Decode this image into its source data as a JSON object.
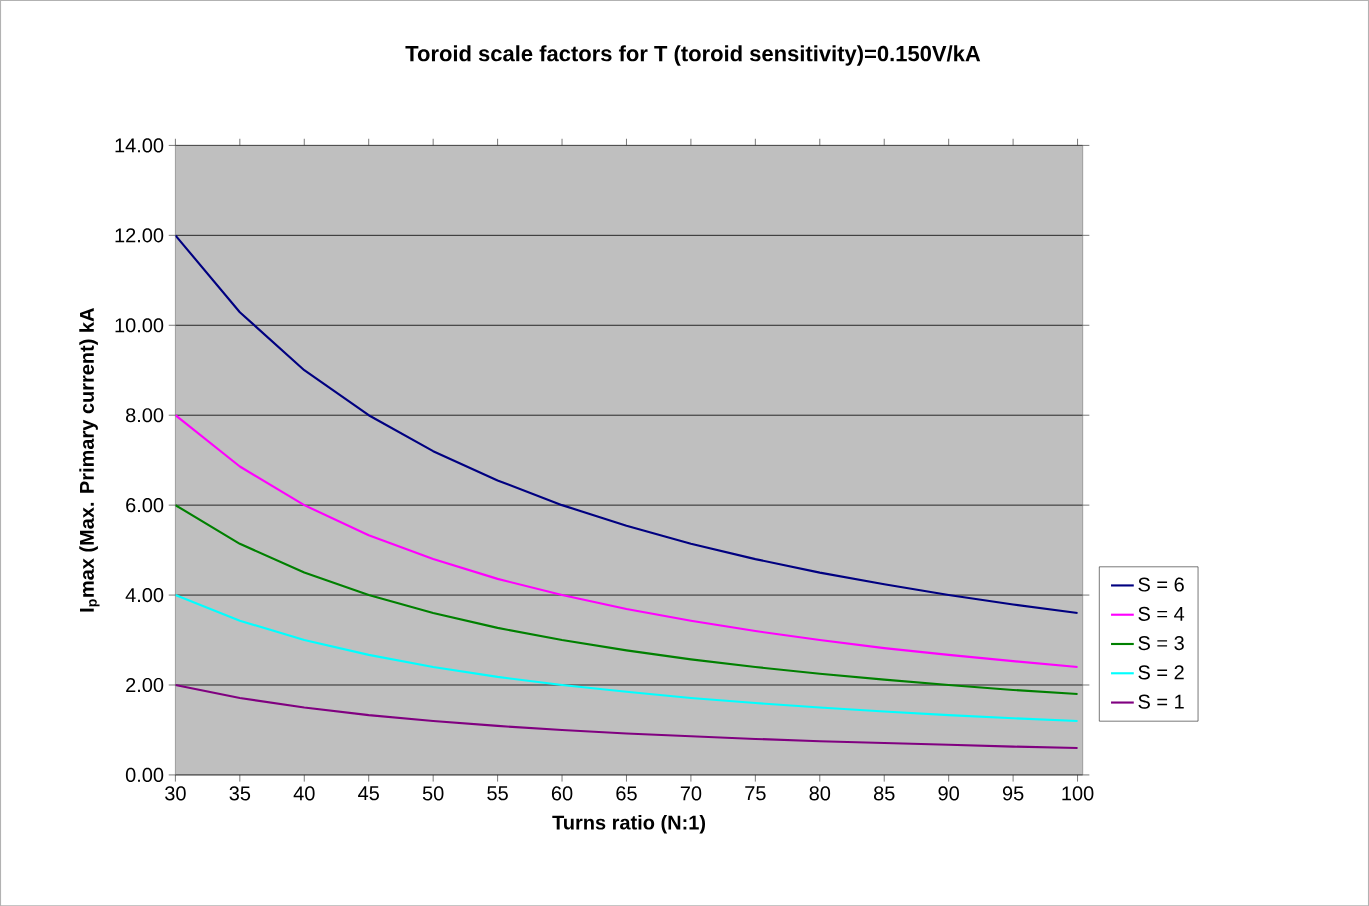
{
  "chart_data": {
    "type": "line",
    "title": "Toroid scale factors for T (toroid sensitivity)=0.150V/kA",
    "xlabel": "Turns ratio (N:1)",
    "ylabel": "I$_{p}$max (Max. Primary current) kA",
    "x": [
      30,
      35,
      40,
      45,
      50,
      55,
      60,
      65,
      70,
      75,
      80,
      85,
      90,
      95,
      100
    ],
    "series": [
      {
        "name": "S = 6",
        "color": "#000080",
        "values": [
          12.0,
          10.29,
          9.0,
          8.0,
          7.2,
          6.55,
          6.0,
          5.54,
          5.14,
          4.8,
          4.5,
          4.24,
          4.0,
          3.79,
          3.6
        ]
      },
      {
        "name": "S = 4",
        "color": "#ff00ff",
        "values": [
          8.0,
          6.86,
          6.0,
          5.33,
          4.8,
          4.36,
          4.0,
          3.69,
          3.43,
          3.2,
          3.0,
          2.82,
          2.67,
          2.53,
          2.4
        ]
      },
      {
        "name": "S = 3",
        "color": "#008000",
        "values": [
          6.0,
          5.14,
          4.5,
          4.0,
          3.6,
          3.27,
          3.0,
          2.77,
          2.57,
          2.4,
          2.25,
          2.12,
          2.0,
          1.89,
          1.8
        ]
      },
      {
        "name": "S = 2",
        "color": "#00ffff",
        "values": [
          4.0,
          3.43,
          3.0,
          2.67,
          2.4,
          2.18,
          2.0,
          1.85,
          1.71,
          1.6,
          1.5,
          1.41,
          1.33,
          1.26,
          1.2
        ]
      },
      {
        "name": "S = 1",
        "color": "#800080",
        "values": [
          2.0,
          1.71,
          1.5,
          1.33,
          1.2,
          1.09,
          1.0,
          0.92,
          0.86,
          0.8,
          0.75,
          0.71,
          0.67,
          0.63,
          0.6
        ]
      }
    ],
    "xlim": [
      30,
      100.4
    ],
    "ylim": [
      0,
      14
    ],
    "xticks": [
      30,
      35,
      40,
      45,
      50,
      55,
      60,
      65,
      70,
      75,
      80,
      85,
      90,
      95,
      100
    ],
    "yticks": [
      {
        "value": 0,
        "label": "0.00"
      },
      {
        "value": 2,
        "label": "2.00"
      },
      {
        "value": 4,
        "label": "4.00"
      },
      {
        "value": 6,
        "label": "6.00"
      },
      {
        "value": 8,
        "label": "8.00"
      },
      {
        "value": 10,
        "label": "10.00"
      },
      {
        "value": 12,
        "label": "12.00"
      },
      {
        "value": 14,
        "label": "14.00"
      }
    ],
    "grid": "y",
    "legend": "right",
    "marker": "none",
    "line_style": "solid"
  }
}
